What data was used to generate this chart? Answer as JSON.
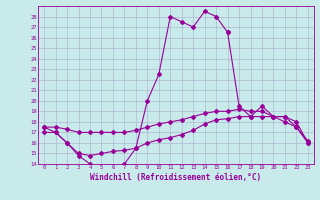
{
  "xlabel": "Windchill (Refroidissement éolien,°C)",
  "line1_x": [
    0,
    1,
    2,
    3,
    4,
    5,
    6,
    7,
    8,
    9,
    10,
    11,
    12,
    13,
    14,
    15,
    16
  ],
  "line1_y": [
    17.5,
    17.0,
    16.0,
    14.8,
    14.0,
    13.8,
    13.8,
    14.0,
    15.5,
    20.0,
    22.5,
    28.0,
    27.5,
    27.0,
    28.5,
    28.0,
    26.5
  ],
  "line2_x": [
    16,
    17,
    18,
    19,
    20,
    21,
    22,
    23
  ],
  "line2_y": [
    26.5,
    19.5,
    18.5,
    19.5,
    18.5,
    18.5,
    17.5,
    16.0
  ],
  "line3_x": [
    0,
    1,
    2,
    3,
    4,
    5,
    6,
    7,
    8,
    9,
    10,
    11,
    12,
    13,
    14,
    15,
    16,
    17,
    18,
    19,
    20,
    21,
    22,
    23
  ],
  "line3_y": [
    17.0,
    17.0,
    16.0,
    15.0,
    14.8,
    15.0,
    15.2,
    15.3,
    15.5,
    16.0,
    16.3,
    16.5,
    16.8,
    17.2,
    17.8,
    18.2,
    18.3,
    18.5,
    18.5,
    18.5,
    18.5,
    18.5,
    18.0,
    16.0
  ],
  "line4_x": [
    0,
    1,
    2,
    3,
    4,
    5,
    6,
    7,
    8,
    9,
    10,
    11,
    12,
    13,
    14,
    15,
    16,
    17,
    18,
    19,
    20,
    21,
    22,
    23
  ],
  "line4_y": [
    17.5,
    17.5,
    17.3,
    17.0,
    17.0,
    17.0,
    17.0,
    17.0,
    17.2,
    17.5,
    17.8,
    18.0,
    18.2,
    18.5,
    18.8,
    19.0,
    19.0,
    19.2,
    19.0,
    19.0,
    18.5,
    18.0,
    17.5,
    16.2
  ],
  "ylim": [
    14,
    29
  ],
  "yticks": [
    14,
    15,
    16,
    17,
    18,
    19,
    20,
    21,
    22,
    23,
    24,
    25,
    26,
    27,
    28
  ],
  "xlim": [
    -0.5,
    23.5
  ],
  "xticks": [
    0,
    1,
    2,
    3,
    4,
    5,
    6,
    7,
    8,
    9,
    10,
    11,
    12,
    13,
    14,
    15,
    16,
    17,
    18,
    19,
    20,
    21,
    22,
    23
  ],
  "line_color": "#990099",
  "bg_color": "#c8eaea",
  "grid_color": "#aaaacc"
}
